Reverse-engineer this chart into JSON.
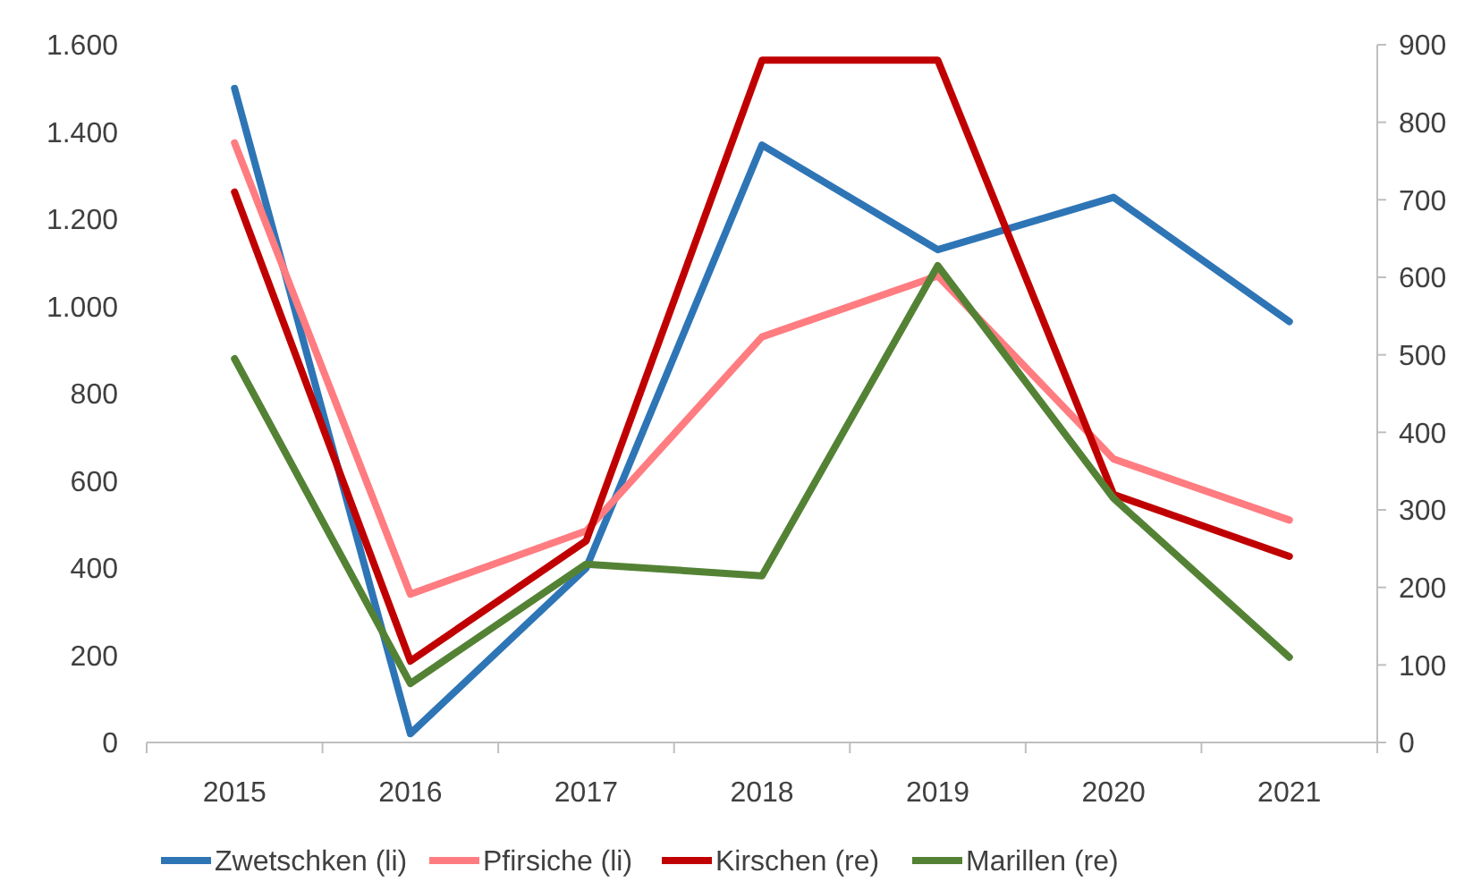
{
  "chart_data": {
    "type": "line",
    "categories": [
      "2015",
      "2016",
      "2017",
      "2018",
      "2019",
      "2020",
      "2021"
    ],
    "series": [
      {
        "name": "Zwetschken (li)",
        "color": "#2e75b6",
        "values": [
          1500,
          20,
          400,
          1370,
          1130,
          1250,
          965
        ]
      },
      {
        "name": "Pfirsiche (li)",
        "color": "#ff7c80",
        "values": [
          1375,
          340,
          485,
          930,
          1070,
          650,
          510
        ]
      },
      {
        "name": "Kirschen (re)",
        "color": "#c00000",
        "axis": "y2",
        "values": [
          710,
          105,
          260,
          880,
          880,
          320,
          240
        ]
      },
      {
        "name": "Marillen (re)",
        "color": "#548235",
        "axis": "y2",
        "values": [
          495,
          76,
          230,
          215,
          615,
          315,
          110
        ]
      }
    ],
    "ylim": [
      0,
      1600
    ],
    "yticks": [
      0,
      200,
      400,
      600,
      800,
      {
        "value": 1000,
        "label": "1.000"
      },
      {
        "value": 1200,
        "label": "1.200"
      },
      {
        "value": 1400,
        "label": "1.400"
      },
      {
        "value": 1600,
        "label": "1.600"
      }
    ],
    "y2lim": [
      0,
      900
    ],
    "y2ticks": [
      0,
      100,
      200,
      300,
      400,
      500,
      600,
      700,
      800,
      900
    ],
    "grid": false,
    "legend": "bottom",
    "marker": "none",
    "line_style": "solid"
  }
}
